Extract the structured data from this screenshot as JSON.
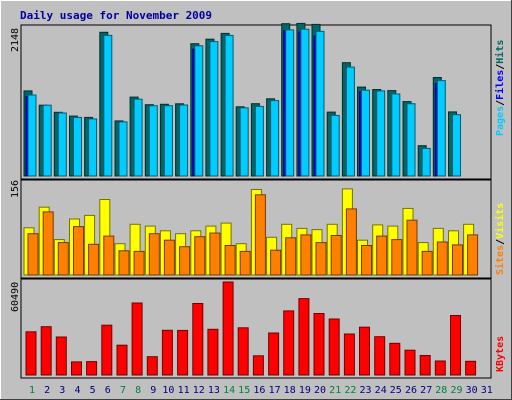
{
  "chart_data": [
    {
      "type": "bar",
      "title": "Daily usage for November 2009",
      "categories": [
        "1",
        "2",
        "3",
        "4",
        "5",
        "6",
        "7",
        "8",
        "9",
        "10",
        "11",
        "12",
        "13",
        "14",
        "15",
        "16",
        "17",
        "18",
        "19",
        "20",
        "21",
        "22",
        "23",
        "24",
        "25",
        "26",
        "27",
        "28",
        "29",
        "30",
        "31"
      ],
      "ytick_label": "2148",
      "ymax": 2148,
      "series": [
        {
          "name": "Hits",
          "color": "#006666",
          "values": [
            1235,
            1028,
            925,
            870,
            850,
            2085,
            800,
            1145,
            1035,
            1040,
            1048,
            1920,
            1985,
            2070,
            1005,
            1050,
            1120,
            2210,
            2215,
            2200,
            928,
            1645,
            1290,
            1255,
            1240,
            1080,
            440,
            1430,
            930,
            0,
            0
          ]
        },
        {
          "name": "Files",
          "color": "#0000ff",
          "values": [
            1150,
            0,
            0,
            0,
            0,
            0,
            0,
            0,
            0,
            0,
            0,
            1840,
            0,
            0,
            0,
            0,
            0,
            2110,
            2090,
            2030,
            0,
            0,
            1220,
            0,
            0,
            0,
            0,
            1340,
            0,
            0,
            0
          ]
        },
        {
          "name": "Pages",
          "color": "#00ccff",
          "values": [
            1175,
            1028,
            915,
            850,
            828,
            2040,
            785,
            1115,
            1020,
            1020,
            1030,
            1890,
            1950,
            2040,
            990,
            1010,
            1095,
            2120,
            2130,
            2100,
            880,
            1580,
            1245,
            1235,
            1190,
            1050,
            400,
            1385,
            890,
            0,
            0
          ]
        }
      ],
      "axis_legend": [
        "Pages",
        "/",
        "Files",
        "/",
        "Hits"
      ]
    },
    {
      "type": "bar",
      "categories": [
        "1",
        "2",
        "3",
        "4",
        "5",
        "6",
        "7",
        "8",
        "9",
        "10",
        "11",
        "12",
        "13",
        "14",
        "15",
        "16",
        "17",
        "18",
        "19",
        "20",
        "21",
        "22",
        "23",
        "24",
        "25",
        "26",
        "27",
        "28",
        "29",
        "30",
        "31"
      ],
      "ytick_label": "156",
      "ymax": 156,
      "series": [
        {
          "name": "Visits",
          "color": "#ffff00",
          "values": [
            80,
            115,
            60,
            95,
            101,
            128,
            53,
            86,
            83,
            75,
            70,
            75,
            83,
            88,
            53,
            145,
            64,
            86,
            79,
            77,
            86,
            146,
            59,
            85,
            83,
            113,
            55,
            79,
            75,
            86,
            0
          ]
        },
        {
          "name": "Sites",
          "color": "#ff8000",
          "values": [
            70,
            107,
            55,
            82,
            52,
            66,
            41,
            40,
            70,
            59,
            48,
            65,
            71,
            50,
            40,
            136,
            42,
            63,
            68,
            55,
            67,
            112,
            50,
            66,
            60,
            93,
            40,
            56,
            51,
            68,
            0
          ]
        }
      ],
      "axis_legend": [
        "Sites",
        "/",
        "Visits"
      ]
    },
    {
      "type": "bar",
      "categories": [
        "1",
        "2",
        "3",
        "4",
        "5",
        "6",
        "7",
        "8",
        "9",
        "10",
        "11",
        "12",
        "13",
        "14",
        "15",
        "16",
        "17",
        "18",
        "19",
        "20",
        "21",
        "22",
        "23",
        "24",
        "25",
        "26",
        "27",
        "28",
        "29",
        "30",
        "31"
      ],
      "ytick_label": "60490",
      "ymax": 60490,
      "series": [
        {
          "name": "KBytes",
          "color": "#ff0000",
          "values": [
            28100,
            31400,
            24700,
            8500,
            8700,
            32400,
            19400,
            46800,
            11900,
            29100,
            29000,
            46500,
            29700,
            60500,
            30700,
            12500,
            27300,
            41700,
            49700,
            40000,
            36400,
            26700,
            31100,
            24900,
            20600,
            16100,
            12700,
            9100,
            38700,
            8900,
            0
          ]
        }
      ],
      "axis_legend": [
        "KBytes"
      ]
    }
  ],
  "x_label_colors": [
    "#008040",
    "#000080",
    "#000080",
    "#000080",
    "#000080",
    "#000080",
    "#008040",
    "#008040",
    "#000080",
    "#000080",
    "#000080",
    "#000080",
    "#000080",
    "#008040",
    "#008040",
    "#000080",
    "#000080",
    "#000080",
    "#000080",
    "#000080",
    "#008040",
    "#008040",
    "#000080",
    "#000080",
    "#000080",
    "#000080",
    "#000080",
    "#008040",
    "#008040",
    "#000080",
    "#000080"
  ]
}
